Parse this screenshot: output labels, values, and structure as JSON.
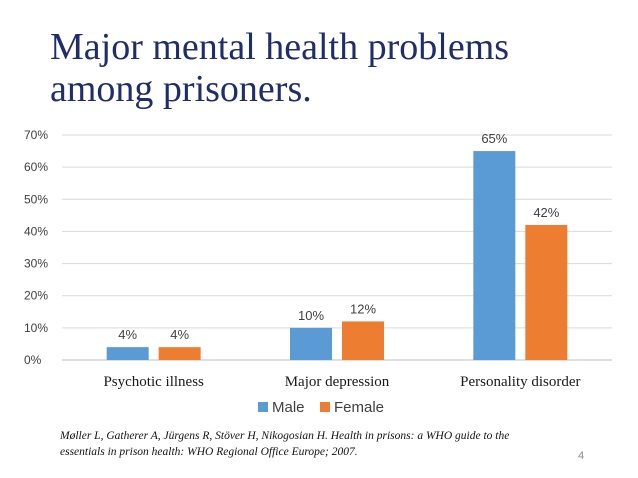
{
  "slide": {
    "title_line1": "Major mental health problems",
    "title_line2": "among prisoners.",
    "citation_line1": "Møller L, Gatherer A, Jürgens R, Stöver H, Nikogosian H. Health in prisons: a WHO guide to the",
    "citation_line2": "essentials in prison health: WHO Regional Office Europe; 2007.",
    "page_number": "4"
  },
  "chart_data": {
    "type": "bar",
    "title": "",
    "xlabel": "",
    "ylabel": "",
    "categories": [
      "Psychotic illness",
      "Major depression",
      "Personality disorder"
    ],
    "series": [
      {
        "name": "Male",
        "color": "#5b9bd5",
        "values": [
          4,
          10,
          65
        ],
        "labels": [
          "4%",
          "10%",
          "65%"
        ]
      },
      {
        "name": "Female",
        "color": "#ed7d31",
        "values": [
          4,
          12,
          42
        ],
        "labels": [
          "4%",
          "12%",
          "42%"
        ]
      }
    ],
    "ylim": [
      0,
      70
    ],
    "yticks": [
      0,
      10,
      20,
      30,
      40,
      50,
      60,
      70
    ],
    "ytick_labels": [
      "0%",
      "10%",
      "20%",
      "30%",
      "40%",
      "50%",
      "60%",
      "70%"
    ],
    "grid": true,
    "legend_position": "bottom"
  }
}
